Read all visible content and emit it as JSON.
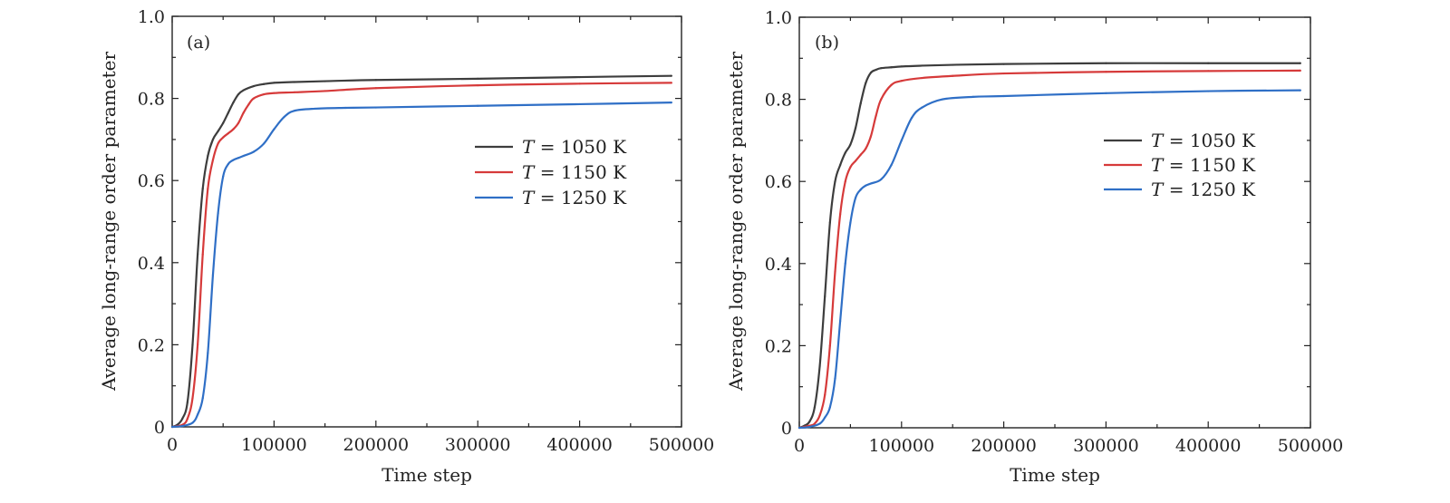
{
  "chart_data": [
    {
      "type": "line",
      "panel_label": "(a)",
      "xlabel": "Time step",
      "ylabel": "Average long-range order parameter",
      "xlim": [
        0,
        500000
      ],
      "ylim": [
        0,
        1.0
      ],
      "xticks": [
        0,
        100000,
        200000,
        300000,
        400000,
        500000
      ],
      "xtick_labels": [
        "0",
        "100000",
        "200000",
        "300000",
        "400000",
        "500000"
      ],
      "yticks": [
        0,
        0.2,
        0.4,
        0.6,
        0.8,
        1.0
      ],
      "ytick_labels": [
        "0",
        "0.2",
        "0.4",
        "0.6",
        "0.8",
        "1.0"
      ],
      "legend_position": "center-right",
      "series": [
        {
          "name": "T = 1050 K",
          "var": "T",
          "rest": " = 1050 K",
          "color": "#3d3d3d",
          "x": [
            0,
            5000,
            10000,
            15000,
            20000,
            25000,
            30000,
            35000,
            40000,
            45000,
            50000,
            55000,
            60000,
            65000,
            70000,
            80000,
            90000,
            100000,
            120000,
            150000,
            200000,
            300000,
            400000,
            490000
          ],
          "y": [
            0,
            0.005,
            0.02,
            0.06,
            0.2,
            0.42,
            0.58,
            0.66,
            0.7,
            0.72,
            0.74,
            0.765,
            0.79,
            0.81,
            0.82,
            0.83,
            0.835,
            0.838,
            0.84,
            0.842,
            0.845,
            0.848,
            0.852,
            0.855
          ]
        },
        {
          "name": "T = 1150 K",
          "var": "T",
          "rest": " = 1150 K",
          "color": "#d63a3a",
          "x": [
            0,
            10000,
            15000,
            20000,
            25000,
            30000,
            35000,
            40000,
            45000,
            50000,
            55000,
            60000,
            65000,
            70000,
            75000,
            80000,
            90000,
            100000,
            120000,
            150000,
            200000,
            300000,
            400000,
            490000
          ],
          "y": [
            0,
            0.005,
            0.02,
            0.07,
            0.2,
            0.42,
            0.58,
            0.65,
            0.69,
            0.705,
            0.715,
            0.725,
            0.74,
            0.765,
            0.785,
            0.8,
            0.81,
            0.813,
            0.815,
            0.818,
            0.825,
            0.832,
            0.836,
            0.838
          ]
        },
        {
          "name": "T = 1250 K",
          "var": "T",
          "rest": " = 1250 K",
          "color": "#2f6fc6",
          "x": [
            0,
            10000,
            20000,
            25000,
            30000,
            35000,
            40000,
            45000,
            50000,
            55000,
            60000,
            65000,
            70000,
            80000,
            90000,
            100000,
            110000,
            120000,
            140000,
            170000,
            200000,
            300000,
            400000,
            490000
          ],
          "y": [
            0,
            0.002,
            0.01,
            0.03,
            0.07,
            0.18,
            0.37,
            0.52,
            0.61,
            0.64,
            0.65,
            0.655,
            0.66,
            0.67,
            0.69,
            0.725,
            0.755,
            0.77,
            0.775,
            0.777,
            0.778,
            0.782,
            0.786,
            0.79
          ]
        }
      ]
    },
    {
      "type": "line",
      "panel_label": "(b)",
      "xlabel": "Time step",
      "ylabel": "Average long-range order parameter",
      "xlim": [
        0,
        500000
      ],
      "ylim": [
        0,
        1.0
      ],
      "xticks": [
        0,
        100000,
        200000,
        300000,
        400000,
        500000
      ],
      "xtick_labels": [
        "0",
        "100000",
        "200000",
        "300000",
        "400000",
        "500000"
      ],
      "yticks": [
        0,
        0.2,
        0.4,
        0.6,
        0.8,
        1.0
      ],
      "ytick_labels": [
        "0",
        "0.2",
        "0.4",
        "0.6",
        "0.8",
        "1.0"
      ],
      "legend_position": "top-right",
      "series": [
        {
          "name": "T = 1050 K",
          "var": "T",
          "rest": " = 1050 K",
          "color": "#3d3d3d",
          "x": [
            0,
            5000,
            10000,
            15000,
            20000,
            25000,
            30000,
            35000,
            40000,
            45000,
            50000,
            55000,
            60000,
            65000,
            70000,
            75000,
            80000,
            90000,
            100000,
            120000,
            150000,
            200000,
            300000,
            400000,
            490000
          ],
          "y": [
            0,
            0.005,
            0.015,
            0.05,
            0.15,
            0.32,
            0.5,
            0.6,
            0.64,
            0.67,
            0.69,
            0.73,
            0.79,
            0.84,
            0.865,
            0.872,
            0.876,
            0.878,
            0.88,
            0.882,
            0.884,
            0.886,
            0.888,
            0.888,
            0.888
          ]
        },
        {
          "name": "T = 1150 K",
          "var": "T",
          "rest": " = 1150 K",
          "color": "#d63a3a",
          "x": [
            0,
            10000,
            15000,
            20000,
            25000,
            30000,
            35000,
            40000,
            45000,
            50000,
            55000,
            60000,
            65000,
            70000,
            75000,
            80000,
            90000,
            100000,
            120000,
            150000,
            200000,
            300000,
            400000,
            490000
          ],
          "y": [
            0,
            0.005,
            0.01,
            0.03,
            0.08,
            0.2,
            0.38,
            0.52,
            0.6,
            0.635,
            0.65,
            0.665,
            0.68,
            0.71,
            0.76,
            0.8,
            0.835,
            0.845,
            0.852,
            0.857,
            0.863,
            0.867,
            0.869,
            0.87
          ]
        },
        {
          "name": "T = 1250 K",
          "var": "T",
          "rest": " = 1250 K",
          "color": "#2f6fc6",
          "x": [
            0,
            10000,
            20000,
            25000,
            30000,
            35000,
            40000,
            45000,
            50000,
            55000,
            60000,
            65000,
            70000,
            80000,
            90000,
            100000,
            110000,
            120000,
            140000,
            170000,
            200000,
            300000,
            400000,
            490000
          ],
          "y": [
            0,
            0.002,
            0.01,
            0.025,
            0.05,
            0.12,
            0.26,
            0.4,
            0.5,
            0.56,
            0.58,
            0.59,
            0.595,
            0.605,
            0.64,
            0.7,
            0.755,
            0.78,
            0.8,
            0.806,
            0.808,
            0.815,
            0.82,
            0.822
          ]
        }
      ]
    }
  ]
}
